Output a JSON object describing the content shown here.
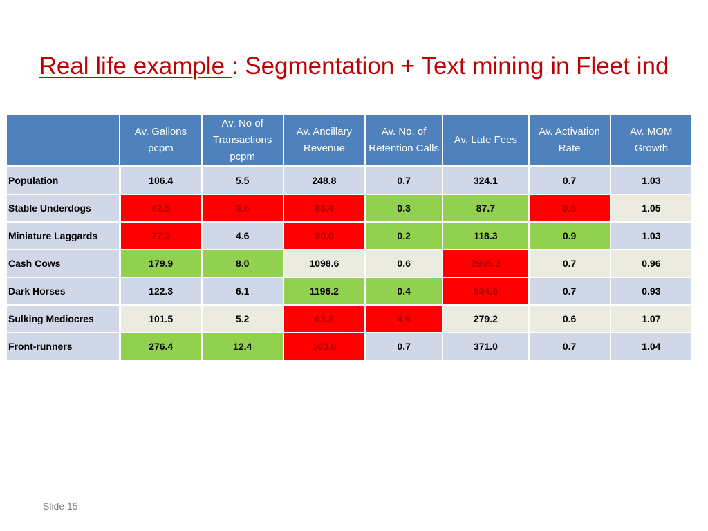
{
  "title": {
    "underlined": "Real life example ",
    "rest": ":  Segmentation + Text mining in Fleet ind"
  },
  "table": {
    "corner": "",
    "headers": [
      "Av. Gallons pcpm",
      "Av. No of Transactions pcpm",
      "Av. Ancillary Revenue",
      "Av. No. of Retention Calls",
      "Av. Late Fees",
      "Av. Activation Rate",
      "Av. MOM Growth"
    ],
    "rows": [
      {
        "label": "Population",
        "values": [
          "106.4",
          "5.5",
          "248.8",
          "0.7",
          "324.1",
          "0.7",
          "1.03"
        ],
        "status": [
          "neutral",
          "neutral",
          "neutral",
          "neutral",
          "neutral",
          "neutral",
          "neutral"
        ]
      },
      {
        "label": "Stable Underdogs",
        "values": [
          "62.5",
          "3.6",
          "83.4",
          "0.3",
          "87.7",
          "0.5",
          "1.05"
        ],
        "status": [
          "bad",
          "bad",
          "bad",
          "good",
          "good",
          "bad",
          "neutral"
        ]
      },
      {
        "label": "Miniature Laggards",
        "values": [
          "77.3",
          "4.6",
          "90.0",
          "0.2",
          "118.3",
          "0.9",
          "1.03"
        ],
        "status": [
          "bad",
          "neutral",
          "bad",
          "good",
          "good",
          "good",
          "neutral"
        ]
      },
      {
        "label": "Cash Cows",
        "values": [
          "179.9",
          "8.0",
          "1098.6",
          "0.6",
          "2965.3",
          "0.7",
          "0.96"
        ],
        "status": [
          "good",
          "good",
          "neutral",
          "neutral",
          "bad",
          "neutral",
          "neutral"
        ]
      },
      {
        "label": "Dark Horses",
        "values": [
          "122.3",
          "6.1",
          "1196.2",
          "0.4",
          "534.6",
          "0.7",
          "0.93"
        ],
        "status": [
          "neutral",
          "neutral",
          "good",
          "good",
          "bad",
          "neutral",
          "neutral"
        ]
      },
      {
        "label": "Sulking Mediocres",
        "values": [
          "101.5",
          "5.2",
          "63.2",
          "4.6",
          "279.2",
          "0.6",
          "1.07"
        ],
        "status": [
          "neutral",
          "neutral",
          "bad",
          "bad",
          "neutral",
          "neutral",
          "neutral"
        ]
      },
      {
        "label": "Front-runners",
        "values": [
          "276.4",
          "12.4",
          "163.8",
          "0.7",
          "371.0",
          "0.7",
          "1.04"
        ],
        "status": [
          "good",
          "good",
          "bad",
          "neutral",
          "neutral",
          "neutral",
          "neutral"
        ]
      }
    ]
  },
  "colors": {
    "title": "#c00000",
    "header_bg": "#4f81bd",
    "bad": "#ff0000",
    "good": "#92d050"
  },
  "footer": {
    "slide_number": "Slide 15"
  }
}
